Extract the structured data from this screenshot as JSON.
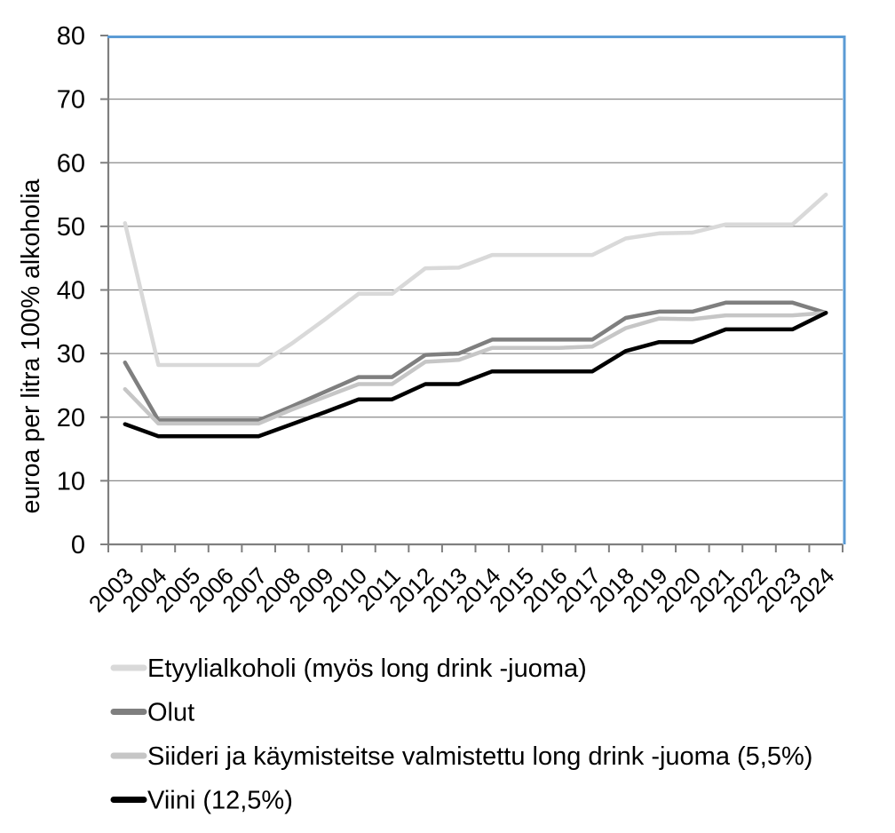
{
  "chart_data": {
    "type": "line",
    "title": "",
    "xlabel": "",
    "ylabel": "euroa per litra 100% alkoholia",
    "ylim": [
      0,
      80
    ],
    "ytick_step": 10,
    "y_tick_labels": [
      "0",
      "10",
      "20",
      "30",
      "40",
      "50",
      "60",
      "70",
      "80"
    ],
    "grid": "horizontal",
    "legend_position": "bottom-left",
    "categories": [
      "2003",
      "2004",
      "2005",
      "2006",
      "2007",
      "2008",
      "2009",
      "2010",
      "2011",
      "2012",
      "2013",
      "2014",
      "2015",
      "2016",
      "2017",
      "2018",
      "2019",
      "2020",
      "2021",
      "2022",
      "2023",
      "2024"
    ],
    "series": [
      {
        "name": "Etyylialkoholi (myös long drink -juoma)",
        "color": "#d9d9d9",
        "values": [
          50.5,
          28.2,
          28.2,
          28.2,
          28.2,
          31.6,
          35.4,
          39.4,
          39.4,
          43.4,
          43.5,
          45.5,
          45.5,
          45.5,
          45.5,
          48.1,
          48.9,
          49.0,
          50.3,
          50.3,
          50.3,
          55.0
        ]
      },
      {
        "name": "Olut",
        "color": "#7f7f7f",
        "values": [
          28.6,
          19.5,
          19.5,
          19.5,
          19.5,
          21.7,
          24.0,
          26.3,
          26.3,
          29.8,
          30.0,
          32.2,
          32.2,
          32.2,
          32.2,
          35.6,
          36.6,
          36.6,
          38.0,
          38.0,
          38.0,
          36.4
        ]
      },
      {
        "name": "Siideri ja käymisteitse valmistettu long drink -juoma (5,5%)",
        "color": "#c6c6c6",
        "values": [
          24.4,
          19.0,
          19.0,
          19.0,
          19.0,
          21.2,
          23.2,
          25.2,
          25.2,
          28.7,
          29.0,
          30.9,
          30.9,
          30.9,
          31.1,
          34.0,
          35.5,
          35.4,
          36.0,
          36.0,
          36.0,
          36.4
        ]
      },
      {
        "name": "Viini (12,5%)",
        "color": "#000000",
        "values": [
          18.9,
          17.0,
          17.0,
          17.0,
          17.0,
          18.9,
          20.8,
          22.8,
          22.8,
          25.2,
          25.2,
          27.2,
          27.2,
          27.2,
          27.2,
          30.4,
          31.8,
          31.8,
          33.8,
          33.8,
          33.8,
          36.4
        ]
      }
    ],
    "colors": {
      "plot_border": "#5b9bd5",
      "gridline": "#8a8a8a",
      "axis": "#7f7f7f"
    }
  }
}
